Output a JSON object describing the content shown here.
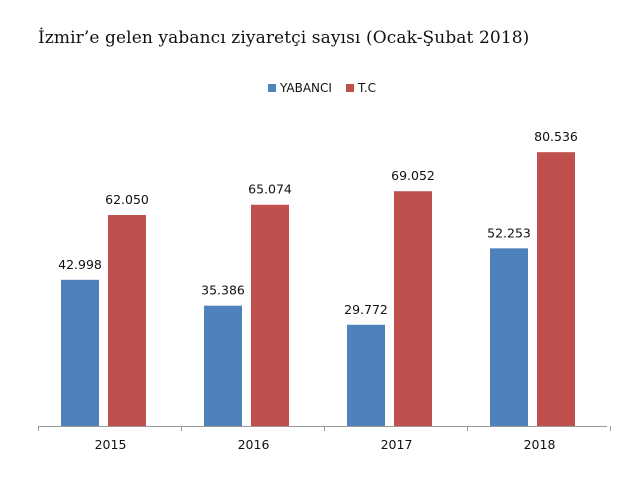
{
  "chart_data": {
    "type": "bar",
    "title": "İzmir’e gelen yabancı ziyaretçi sayısı (Ocak-Şubat 2018)",
    "categories": [
      "2015",
      "2016",
      "2017",
      "2018"
    ],
    "series": [
      {
        "name": "YABANCI",
        "values": [
          42998,
          35386,
          29772,
          52253
        ],
        "labels": [
          "42.998",
          "35.386",
          "29.772",
          "52.253"
        ],
        "color": "#4f81bd"
      },
      {
        "name": "T.C",
        "values": [
          62050,
          65074,
          69052,
          80536
        ],
        "labels": [
          "62.050",
          "65.074",
          "69.052",
          "80.536"
        ],
        "color": "#c0504d"
      }
    ],
    "xlabel": "",
    "ylabel": "",
    "ylim": [
      0,
      100000
    ],
    "grid": false,
    "legend_position": "top-center"
  }
}
